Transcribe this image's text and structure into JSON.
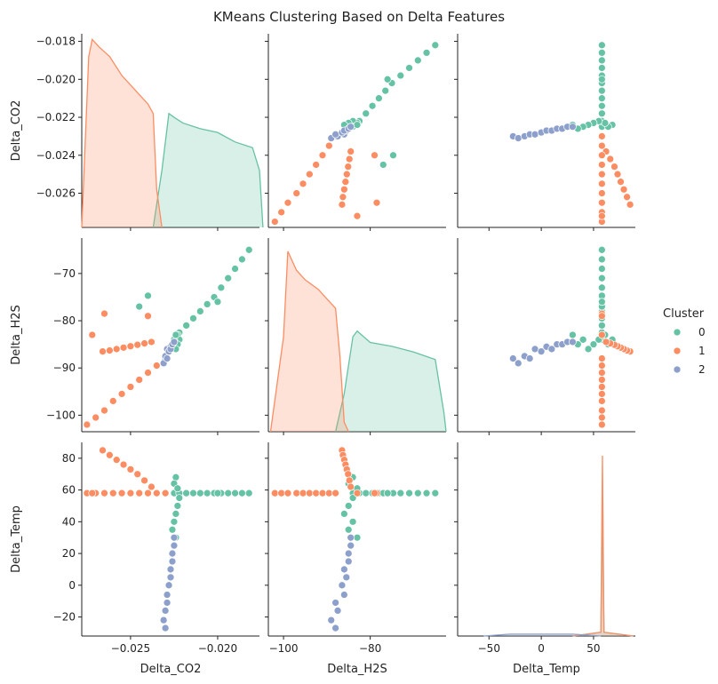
{
  "chart_data": {
    "type": "pairplot",
    "title": "KMeans Clustering Based on Delta Features",
    "legend_title": "Cluster",
    "legend_position": "right",
    "variables": [
      {
        "name": "Delta_CO2",
        "xlim": [
          -0.0278,
          -0.0176
        ],
        "ylim": [
          -0.0278,
          -0.0176
        ],
        "xticks": [
          {
            "value": -0.025,
            "label": "−0.025"
          },
          {
            "value": -0.02,
            "label": "−0.020"
          }
        ],
        "yticks": [
          {
            "value": -0.026,
            "label": "−0.026"
          },
          {
            "value": -0.024,
            "label": "−0.024"
          },
          {
            "value": -0.022,
            "label": "−0.022"
          },
          {
            "value": -0.02,
            "label": "−0.020"
          },
          {
            "value": -0.018,
            "label": "−0.018"
          }
        ],
        "density_lim": [
          0,
          1.02
        ]
      },
      {
        "name": "Delta_H2S",
        "xlim": [
          -103.5,
          -62.5
        ],
        "ylim": [
          -103.5,
          -62.5
        ],
        "xticks": [
          {
            "value": -100,
            "label": "−100"
          },
          {
            "value": -80,
            "label": "−80"
          }
        ],
        "yticks": [
          {
            "value": -100,
            "label": "−100"
          },
          {
            "value": -90,
            "label": "−90"
          },
          {
            "value": -80,
            "label": "−80"
          },
          {
            "value": -70,
            "label": "−70"
          }
        ],
        "density_lim": [
          0,
          1.02
        ]
      },
      {
        "name": "Delta_Temp",
        "xlim": [
          -80,
          90
        ],
        "ylim": [
          -32,
          90
        ],
        "xticks": [
          {
            "value": -50,
            "label": "−50"
          },
          0,
          50
        ],
        "yticks": [
          {
            "value": -20,
            "label": "−20"
          },
          0,
          20,
          40,
          60,
          80
        ],
        "density_lim": [
          0,
          1.02
        ]
      }
    ],
    "series": [
      {
        "name": "0",
        "color": "#66c2a5",
        "values": {
          "Delta_CO2": [
            -0.0225,
            -0.0222,
            -0.0218,
            -0.0214,
            -0.021,
            -0.0206,
            -0.0202,
            -0.0198,
            -0.0194,
            -0.019,
            -0.0186,
            -0.0182,
            -0.0224,
            -0.0225,
            -0.0223,
            -0.0222,
            -0.0223,
            -0.0224,
            -0.0225,
            -0.0226,
            -0.0224,
            -0.024,
            -0.0245,
            -0.02
          ],
          "Delta_H2S": [
            -84,
            -82.5,
            -81,
            -79.5,
            -78,
            -76.5,
            -75,
            -73,
            -71,
            -69,
            -67,
            -65,
            -84,
            -85,
            -83,
            -84,
            -85,
            -86,
            -84,
            -85,
            -83,
            -74.7,
            -77,
            -76
          ],
          "Delta_Temp": [
            58,
            58,
            58,
            58,
            58,
            58,
            58,
            58,
            58,
            58,
            58,
            58,
            68,
            64,
            61,
            55,
            50,
            45,
            40,
            35,
            30,
            58,
            58,
            58
          ]
        },
        "kde": {
          "Delta_CO2": {
            "x": [
              -0.0237,
              -0.0232,
              -0.0228,
              -0.0225,
              -0.022,
              -0.021,
              -0.02,
              -0.019,
              -0.018,
              -0.0176,
              -0.0174
            ],
            "density": [
              0,
              0.3,
              0.6,
              0.58,
              0.55,
              0.52,
              0.5,
              0.45,
              0.42,
              0.3,
              0
            ]
          },
          "Delta_H2S": {
            "x": [
              -88,
              -86,
              -84,
              -83,
              -80,
              -75,
              -70,
              -65,
              -63,
              -62.5
            ],
            "density": [
              0,
              0.2,
              0.5,
              0.53,
              0.47,
              0.45,
              0.42,
              0.38,
              0.1,
              0
            ]
          },
          "Delta_Temp": {
            "x": [
              30,
              57,
              58.5,
              60,
              88
            ],
            "density": [
              0,
              0.02,
              0.67,
              0.02,
              0
            ]
          }
        }
      },
      {
        "name": "1",
        "color": "#fc8d62",
        "values": {
          "Delta_CO2": [
            -0.0275,
            -0.027,
            -0.0265,
            -0.026,
            -0.0255,
            -0.025,
            -0.0245,
            -0.024,
            -0.0235,
            -0.023,
            -0.0266,
            -0.0262,
            -0.0258,
            -0.0254,
            -0.025,
            -0.0246,
            -0.0242,
            -0.0238,
            -0.0265,
            -0.0272,
            -0.024
          ],
          "Delta_H2S": [
            -102,
            -100.5,
            -99,
            -97,
            -95.5,
            -94,
            -92.5,
            -91,
            -89.5,
            -88,
            -86.5,
            -86.3,
            -86,
            -85.7,
            -85.4,
            -85.1,
            -84.8,
            -84.5,
            -78.5,
            -83,
            -79
          ],
          "Delta_Temp": [
            58,
            58,
            58,
            58,
            58,
            58,
            58,
            58,
            58,
            58,
            85,
            82,
            79,
            76,
            73,
            70,
            66,
            62,
            58,
            58,
            58
          ]
        },
        "kde": {
          "Delta_CO2": {
            "x": [
              -0.0278,
              -0.0274,
              -0.0272,
              -0.0268,
              -0.0262,
              -0.0255,
              -0.025,
              -0.0245,
              -0.024,
              -0.0237,
              -0.0235,
              -0.0232
            ],
            "density": [
              0,
              0.9,
              0.99,
              0.95,
              0.9,
              0.8,
              0.75,
              0.7,
              0.65,
              0.6,
              0.2,
              0
            ]
          },
          "Delta_H2S": {
            "x": [
              -103,
              -100,
              -99,
              -97,
              -95,
              -92,
              -90,
              -88,
              -87,
              -86,
              -85
            ],
            "density": [
              0,
              0.5,
              0.95,
              0.85,
              0.8,
              0.75,
              0.7,
              0.65,
              0.4,
              0.05,
              0
            ]
          },
          "Delta_Temp": {
            "x": [
              30,
              57,
              58.5,
              60,
              88
            ],
            "density": [
              0,
              0.02,
              0.95,
              0.02,
              0
            ]
          }
        }
      },
      {
        "name": "2",
        "color": "#8da0cb",
        "values": {
          "Delta_CO2": [
            -0.023,
            -0.0231,
            -0.023,
            -0.0229,
            -0.0229,
            -0.0228,
            -0.0227,
            -0.0227,
            -0.0226,
            -0.0226,
            -0.0225,
            -0.0225
          ],
          "Delta_H2S": [
            -88,
            -89,
            -87.5,
            -88,
            -86,
            -86.5,
            -85.5,
            -86,
            -85,
            -85,
            -84.5,
            -84.5
          ],
          "Delta_Temp": [
            -27,
            -22,
            -16,
            -11,
            -6,
            0,
            5,
            10,
            15,
            20,
            25,
            30
          ]
        },
        "kde": {
          "Delta_Temp": {
            "x": [
              -55,
              -30,
              0,
              30,
              57
            ],
            "density": [
              0,
              0.01,
              0.01,
              0.01,
              0
            ]
          }
        }
      }
    ]
  }
}
